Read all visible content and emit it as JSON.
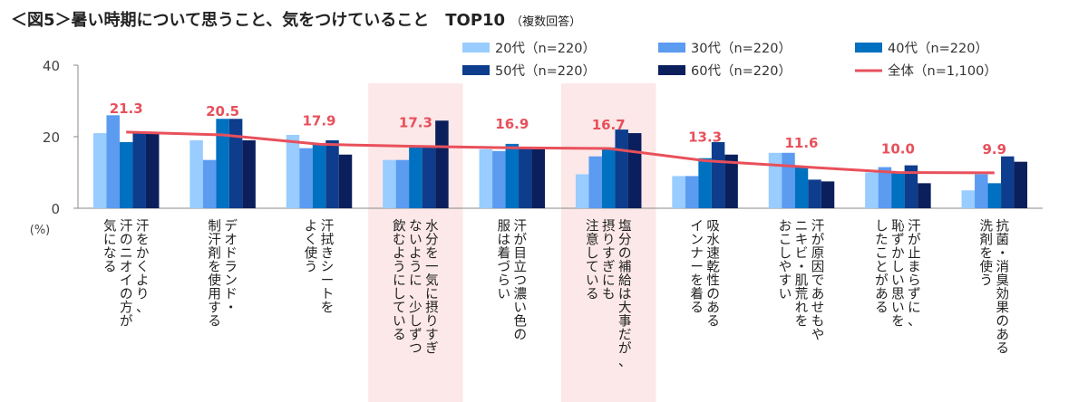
{
  "title": "＜図5＞暑い時期について思うこと、気をつけていること　TOP10",
  "subtitle": "（複数回答）",
  "chart_data": {
    "type": "bar",
    "ylabel": "(%)",
    "ylim": [
      0,
      40
    ],
    "yticks": [
      "0",
      "20",
      "40"
    ],
    "categories": [
      "汗をかくより、汗のニオイの方が気になる",
      "デオドランド・制汗剤を使用する",
      "汗拭きシートをよく使う",
      "水分を一気に摂りすぎないように、少しずつ飲むようにしている",
      "汗が目立つ濃い色の服は着づらい",
      "塩分の補給は大事だが、摂りすぎにも注意している",
      "吸水速乾性のあるインナーを着る",
      "汗が原因であせもやニキビ・肌荒れをおこしやすい",
      "汗が止まらずに、恥ずかしい思いをしたことがある",
      "抗菌・消臭効果のある洗剤を使う"
    ],
    "category_lines": [
      [
        "汗をかくより、",
        "汗のニオイの方が",
        "気になる"
      ],
      [
        "デオドランド・",
        "制汗剤を使用する"
      ],
      [
        "汗拭きシートを",
        "よく使う"
      ],
      [
        "水分を一気に摂りすぎ",
        "ないように、少しずつ",
        "飲むようにしている"
      ],
      [
        "汗が目立つ濃い色の",
        "服は着づらい"
      ],
      [
        "塩分の補給は大事だが、",
        "摂りすぎにも",
        "注意している"
      ],
      [
        "吸水速乾性のある",
        "インナーを着る"
      ],
      [
        "汗が原因であせもや",
        "ニキビ・肌荒れを",
        "おこしやすい"
      ],
      [
        "汗が止まらずに、",
        "恥ずかしい思いを",
        "したことがある"
      ],
      [
        "抗菌・消臭効果のある",
        "洗剤を使う"
      ]
    ],
    "highlighted_categories": [
      3,
      5
    ],
    "highlight_color": "#fce8e8",
    "series": [
      {
        "name": "20代（n=220）",
        "color": "#99ccff",
        "values": [
          21.0,
          19.0,
          20.5,
          13.5,
          16.5,
          9.5,
          9.0,
          15.5,
          10.0,
          5.0
        ]
      },
      {
        "name": "30代（n=220）",
        "color": "#5b9bf0",
        "values": [
          26.0,
          13.5,
          16.8,
          13.5,
          16.0,
          14.5,
          9.0,
          15.5,
          11.5,
          9.5
        ]
      },
      {
        "name": "40代（n=220）",
        "color": "#0070c0",
        "values": [
          18.5,
          25.0,
          18.0,
          17.0,
          18.0,
          17.0,
          14.0,
          11.5,
          10.0,
          7.0
        ]
      },
      {
        "name": "50代（n=220）",
        "color": "#0d3d8c",
        "values": [
          21.0,
          25.0,
          19.0,
          17.0,
          17.0,
          22.0,
          18.5,
          8.0,
          12.0,
          14.5
        ]
      },
      {
        "name": "60代（n=220）",
        "color": "#0a1f5c",
        "values": [
          21.0,
          19.0,
          15.0,
          24.5,
          16.5,
          21.0,
          15.0,
          7.5,
          7.0,
          13.0
        ]
      }
    ],
    "total": {
      "name": "全体（n=1,100）",
      "color": "#e8505b",
      "values": [
        21.3,
        20.5,
        17.9,
        17.3,
        16.9,
        16.7,
        13.3,
        11.6,
        10.0,
        9.9
      ],
      "labels": [
        "21.3",
        "20.5",
        "17.9",
        "17.3",
        "16.9",
        "16.7",
        "13.3",
        "11.6",
        "10.0",
        "9.9"
      ]
    },
    "legend_position": "top-right",
    "grid": false
  }
}
